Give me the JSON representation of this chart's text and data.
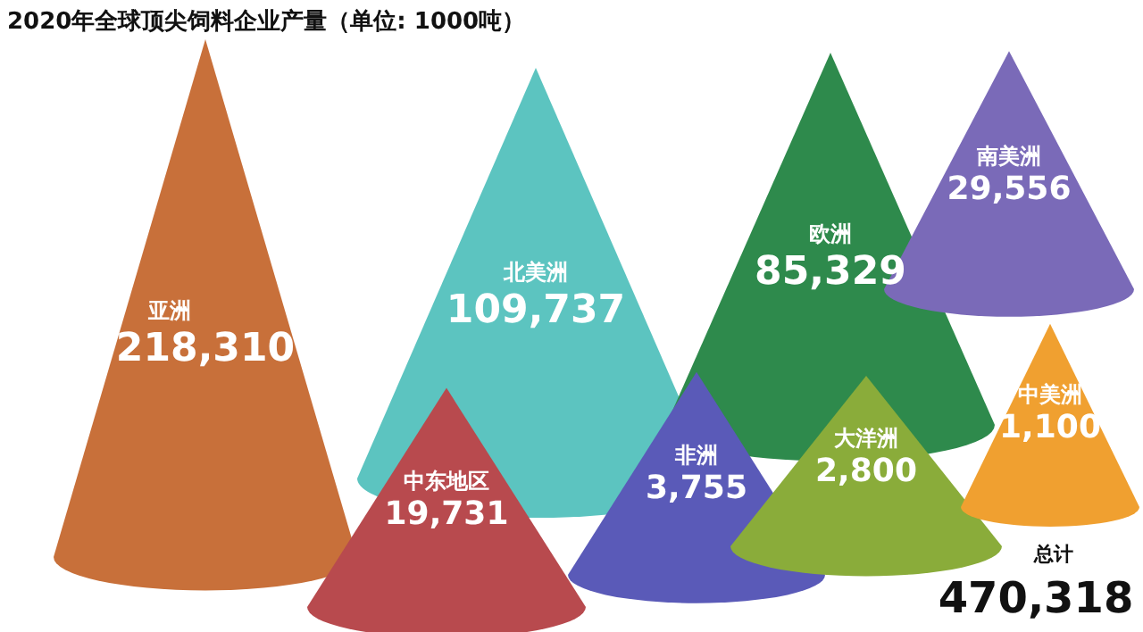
{
  "chart_data": {
    "type": "other",
    "title": "2020年全球顶尖饲料企业产量（单位: 1000吨）",
    "categories": [
      "亚洲",
      "北美洲",
      "欧洲",
      "南美洲",
      "中东地区",
      "非洲",
      "大洋洲",
      "中美洲"
    ],
    "values": [
      218310,
      109737,
      85329,
      29556,
      19731,
      3755,
      2800,
      1100
    ],
    "colors": [
      "#c8703a",
      "#5cc4c0",
      "#2e8a4c",
      "#7a6ab8",
      "#b84a4e",
      "#5a5ab8",
      "#8aac3a",
      "#f0a030"
    ],
    "value_labels": [
      "218,310",
      "109,737",
      "85,329",
      "29,556",
      "19,731",
      "3,755",
      "2,800",
      "1,100"
    ],
    "annotations": [
      "总计",
      "470,318"
    ]
  }
}
